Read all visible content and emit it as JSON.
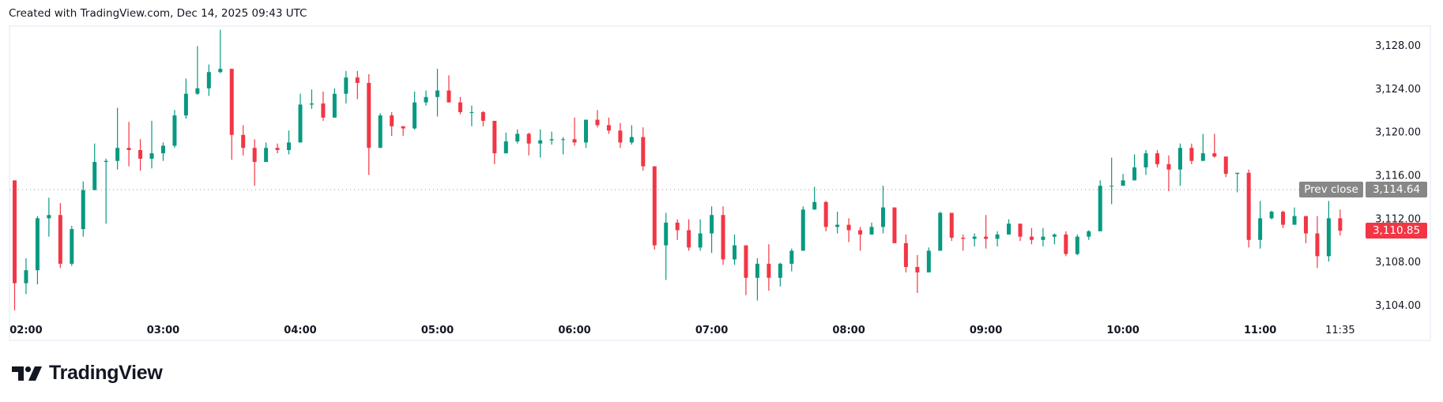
{
  "caption": "Created with TradingView.com, Dec 14, 2025 09:43 UTC",
  "brand": "TradingView",
  "colors": {
    "up": "#089981",
    "down": "#f23645",
    "prev_close_tag": "#878787",
    "last_price_tag": "#f23645"
  },
  "prev_close": {
    "label": "Prev close",
    "value_text": "3,114.64",
    "value": 3114.64
  },
  "last_price": {
    "value_text": "3,110.85",
    "value": 3110.85
  },
  "chart_data": {
    "type": "candlestick",
    "ylim": [
      3102.5,
      3130
    ],
    "y_ticks": [
      "3,104.00",
      "3,108.00",
      "3,112.00",
      "3,116.00",
      "3,120.00",
      "3,124.00",
      "3,128.00"
    ],
    "y_tick_values": [
      3104,
      3108,
      3112,
      3116,
      3120,
      3124,
      3128
    ],
    "x_ticks": [
      "02:00",
      "03:00",
      "04:00",
      "05:00",
      "06:00",
      "07:00",
      "08:00",
      "09:00",
      "10:00",
      "11:00",
      "11:35"
    ],
    "grid": false,
    "bars": [
      [
        "01:55",
        3115.5,
        3115.5,
        3103.5,
        3106.0
      ],
      [
        "02:00",
        3106.0,
        3108.3,
        3105.0,
        3107.2
      ],
      [
        "02:05",
        3107.2,
        3112.2,
        3105.9,
        3112.0
      ],
      [
        "02:10",
        3112.0,
        3113.9,
        3110.3,
        3112.3
      ],
      [
        "02:15",
        3112.3,
        3113.4,
        3107.4,
        3107.8
      ],
      [
        "02:20",
        3107.8,
        3111.3,
        3107.6,
        3111.0
      ],
      [
        "02:25",
        3111.0,
        3115.4,
        3110.3,
        3114.6
      ],
      [
        "02:30",
        3114.6,
        3118.9,
        3114.6,
        3117.2
      ],
      [
        "02:35",
        3117.2,
        3117.5,
        3111.5,
        3117.3
      ],
      [
        "02:40",
        3117.3,
        3122.2,
        3116.5,
        3118.5
      ],
      [
        "02:45",
        3118.5,
        3120.9,
        3116.8,
        3118.3
      ],
      [
        "02:50",
        3118.3,
        3119.3,
        3116.4,
        3117.5
      ],
      [
        "02:55",
        3117.5,
        3121.0,
        3116.6,
        3118.0
      ],
      [
        "03:00",
        3118.0,
        3119.0,
        3117.3,
        3118.7
      ],
      [
        "03:05",
        3118.7,
        3122.0,
        3118.5,
        3121.5
      ],
      [
        "03:10",
        3121.5,
        3124.9,
        3121.2,
        3123.5
      ],
      [
        "03:15",
        3123.5,
        3127.9,
        3123.4,
        3124.0
      ],
      [
        "03:20",
        3124.0,
        3126.2,
        3123.3,
        3125.5
      ],
      [
        "03:25",
        3125.5,
        3129.4,
        3125.4,
        3125.8
      ],
      [
        "03:30",
        3125.8,
        3125.8,
        3117.4,
        3119.7
      ],
      [
        "03:35",
        3119.7,
        3120.6,
        3117.8,
        3118.5
      ],
      [
        "03:40",
        3118.5,
        3119.3,
        3115.0,
        3117.2
      ],
      [
        "03:45",
        3117.2,
        3119.0,
        3117.2,
        3118.5
      ],
      [
        "03:50",
        3118.5,
        3118.9,
        3118.0,
        3118.3
      ],
      [
        "03:55",
        3118.3,
        3120.1,
        3117.9,
        3119.0
      ],
      [
        "04:00",
        3119.0,
        3123.5,
        3119.0,
        3122.5
      ],
      [
        "04:05",
        3122.5,
        3123.9,
        3122.1,
        3122.6
      ],
      [
        "04:10",
        3122.6,
        3123.7,
        3121.0,
        3121.3
      ],
      [
        "04:15",
        3121.3,
        3124.0,
        3121.3,
        3123.5
      ],
      [
        "04:20",
        3123.5,
        3125.6,
        3122.6,
        3125.0
      ],
      [
        "04:25",
        3125.0,
        3125.6,
        3123.0,
        3124.5
      ],
      [
        "04:30",
        3124.5,
        3125.3,
        3116.0,
        3118.5
      ],
      [
        "04:35",
        3118.5,
        3121.7,
        3118.5,
        3121.5
      ],
      [
        "04:40",
        3121.5,
        3121.8,
        3119.6,
        3120.5
      ],
      [
        "04:45",
        3120.5,
        3120.5,
        3119.6,
        3120.3
      ],
      [
        "04:50",
        3120.3,
        3123.7,
        3120.2,
        3122.7
      ],
      [
        "04:55",
        3122.7,
        3123.8,
        3122.4,
        3123.2
      ],
      [
        "05:00",
        3123.2,
        3125.8,
        3121.4,
        3123.8
      ],
      [
        "05:05",
        3123.8,
        3125.2,
        3122.7,
        3122.7
      ],
      [
        "05:10",
        3122.7,
        3123.2,
        3121.6,
        3121.8
      ],
      [
        "05:15",
        3121.8,
        3122.4,
        3120.5,
        3121.8
      ],
      [
        "05:20",
        3121.8,
        3121.9,
        3120.5,
        3121.0
      ],
      [
        "05:25",
        3121.0,
        3121.0,
        3117.0,
        3118.0
      ],
      [
        "05:30",
        3118.0,
        3119.9,
        3118.0,
        3119.1
      ],
      [
        "05:35",
        3119.1,
        3120.2,
        3118.9,
        3119.8
      ],
      [
        "05:40",
        3119.8,
        3119.9,
        3117.8,
        3118.9
      ],
      [
        "05:45",
        3118.9,
        3120.2,
        3117.6,
        3119.2
      ],
      [
        "05:50",
        3119.2,
        3120.0,
        3118.8,
        3119.3
      ],
      [
        "05:55",
        3119.3,
        3119.5,
        3117.9,
        3119.3
      ],
      [
        "06:00",
        3119.3,
        3121.3,
        3118.7,
        3119.0
      ],
      [
        "06:05",
        3119.0,
        3121.1,
        3118.5,
        3121.1
      ],
      [
        "06:10",
        3121.1,
        3122.0,
        3120.4,
        3120.6
      ],
      [
        "06:15",
        3120.6,
        3121.3,
        3119.8,
        3120.1
      ],
      [
        "06:20",
        3120.1,
        3120.8,
        3118.5,
        3119.0
      ],
      [
        "06:25",
        3119.0,
        3120.6,
        3118.8,
        3119.5
      ],
      [
        "06:30",
        3119.5,
        3120.4,
        3116.4,
        3116.8
      ],
      [
        "06:35",
        3116.8,
        3116.8,
        3109.1,
        3109.5
      ],
      [
        "06:40",
        3109.5,
        3112.5,
        3106.3,
        3111.6
      ],
      [
        "06:45",
        3111.6,
        3111.9,
        3110.0,
        3110.9
      ],
      [
        "06:50",
        3110.9,
        3111.9,
        3109.0,
        3109.3
      ],
      [
        "06:55",
        3109.3,
        3111.9,
        3109.0,
        3110.6
      ],
      [
        "07:00",
        3110.6,
        3113.1,
        3108.8,
        3112.3
      ],
      [
        "07:05",
        3112.3,
        3113.1,
        3107.7,
        3108.2
      ],
      [
        "07:10",
        3108.2,
        3110.5,
        3107.7,
        3109.5
      ],
      [
        "07:15",
        3109.5,
        3109.5,
        3104.9,
        3106.5
      ],
      [
        "07:20",
        3106.5,
        3108.3,
        3104.4,
        3107.8
      ],
      [
        "07:25",
        3107.8,
        3109.6,
        3105.3,
        3106.5
      ],
      [
        "07:30",
        3106.5,
        3107.9,
        3105.7,
        3107.8
      ],
      [
        "07:35",
        3107.8,
        3109.2,
        3107.1,
        3109.0
      ],
      [
        "07:40",
        3109.0,
        3113.1,
        3109.0,
        3112.8
      ],
      [
        "07:45",
        3112.8,
        3114.9,
        3112.8,
        3113.5
      ],
      [
        "07:50",
        3113.5,
        3113.6,
        3110.8,
        3111.2
      ],
      [
        "07:55",
        3111.2,
        3112.6,
        3110.6,
        3111.4
      ],
      [
        "08:00",
        3111.4,
        3112.0,
        3109.8,
        3110.9
      ],
      [
        "08:05",
        3110.9,
        3111.2,
        3109.0,
        3110.5
      ],
      [
        "08:10",
        3110.5,
        3111.6,
        3110.5,
        3111.2
      ],
      [
        "08:15",
        3111.2,
        3115.0,
        3110.6,
        3113.0
      ],
      [
        "08:20",
        3113.0,
        3113.0,
        3109.7,
        3109.7
      ],
      [
        "08:25",
        3109.7,
        3110.5,
        3107.0,
        3107.5
      ],
      [
        "08:30",
        3107.5,
        3108.6,
        3105.1,
        3107.0
      ],
      [
        "08:35",
        3107.0,
        3109.3,
        3107.0,
        3109.0
      ],
      [
        "08:40",
        3109.0,
        3112.6,
        3109.0,
        3112.5
      ],
      [
        "08:45",
        3112.5,
        3112.5,
        3109.9,
        3110.2
      ],
      [
        "08:50",
        3110.2,
        3110.5,
        3109.0,
        3110.1
      ],
      [
        "08:55",
        3110.1,
        3110.6,
        3109.4,
        3110.3
      ],
      [
        "09:00",
        3110.3,
        3112.3,
        3109.2,
        3110.1
      ],
      [
        "09:05",
        3110.1,
        3110.8,
        3109.4,
        3110.5
      ],
      [
        "09:10",
        3110.5,
        3111.9,
        3110.5,
        3111.5
      ],
      [
        "09:15",
        3111.5,
        3111.5,
        3109.9,
        3110.3
      ],
      [
        "09:20",
        3110.3,
        3111.1,
        3109.6,
        3110.0
      ],
      [
        "09:25",
        3110.0,
        3111.1,
        3109.4,
        3110.3
      ],
      [
        "09:30",
        3110.3,
        3110.6,
        3109.6,
        3110.5
      ],
      [
        "09:35",
        3110.5,
        3110.8,
        3108.5,
        3108.7
      ],
      [
        "09:40",
        3108.7,
        3110.5,
        3108.6,
        3110.3
      ],
      [
        "09:45",
        3110.3,
        3110.9,
        3110.0,
        3110.8
      ],
      [
        "09:50",
        3110.8,
        3115.5,
        3110.8,
        3115.0
      ],
      [
        "09:55",
        3115.0,
        3117.6,
        3113.3,
        3115.0
      ],
      [
        "10:00",
        3115.0,
        3116.1,
        3115.0,
        3115.5
      ],
      [
        "10:05",
        3115.5,
        3117.9,
        3115.5,
        3116.7
      ],
      [
        "10:10",
        3116.7,
        3118.3,
        3116.0,
        3118.0
      ],
      [
        "10:15",
        3118.0,
        3118.3,
        3116.7,
        3117.0
      ],
      [
        "10:20",
        3117.0,
        3117.8,
        3114.5,
        3116.5
      ],
      [
        "10:25",
        3116.5,
        3118.9,
        3115.0,
        3118.5
      ],
      [
        "10:30",
        3118.5,
        3118.9,
        3117.0,
        3117.3
      ],
      [
        "10:35",
        3117.3,
        3119.8,
        3117.3,
        3118.0
      ],
      [
        "10:40",
        3118.0,
        3119.8,
        3117.6,
        3117.7
      ],
      [
        "10:45",
        3117.7,
        3117.7,
        3115.8,
        3116.1
      ],
      [
        "10:50",
        3116.1,
        3116.2,
        3114.4,
        3116.2
      ],
      [
        "10:55",
        3116.2,
        3116.5,
        3109.3,
        3110.0
      ],
      [
        "11:00",
        3110.0,
        3113.6,
        3109.2,
        3112.0
      ],
      [
        "11:05",
        3112.0,
        3112.7,
        3111.9,
        3112.6
      ],
      [
        "11:10",
        3112.6,
        3112.7,
        3111.1,
        3111.4
      ],
      [
        "11:15",
        3111.4,
        3113.0,
        3111.4,
        3112.2
      ],
      [
        "11:20",
        3112.2,
        3112.2,
        3109.7,
        3110.6
      ],
      [
        "11:25",
        3110.6,
        3112.2,
        3107.4,
        3108.5
      ],
      [
        "11:30",
        3108.5,
        3113.6,
        3108.0,
        3112.0
      ],
      [
        "11:35",
        3112.0,
        3112.8,
        3110.4,
        3110.85
      ]
    ]
  }
}
